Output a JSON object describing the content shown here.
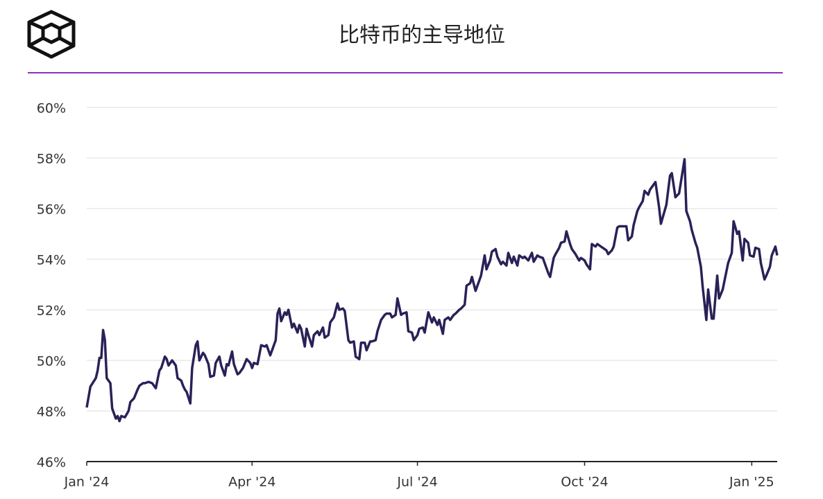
{
  "chart_data": {
    "type": "line",
    "title": "比特币的主导地位",
    "color": "#2a2157",
    "grid": true,
    "xlim": [
      0,
      380
    ],
    "xticks": [
      {
        "value": 0,
        "label": "Jan '24"
      },
      {
        "value": 91,
        "label": "Apr '24"
      },
      {
        "value": 182,
        "label": "Jul '24"
      },
      {
        "value": 274,
        "label": "Oct '24"
      },
      {
        "value": 366,
        "label": "Jan '25"
      }
    ],
    "ylim": [
      46,
      60
    ],
    "yticks": [
      {
        "value": 46,
        "label": "46%"
      },
      {
        "value": 48,
        "label": "48%"
      },
      {
        "value": 50,
        "label": "50%"
      },
      {
        "value": 52,
        "label": "52%"
      },
      {
        "value": 54,
        "label": "54%"
      },
      {
        "value": 56,
        "label": "56%"
      },
      {
        "value": 58,
        "label": "58%"
      },
      {
        "value": 60,
        "label": "60%"
      }
    ],
    "x": [
      0,
      2,
      5,
      6,
      7,
      8,
      9,
      10,
      11,
      13,
      14,
      15,
      16,
      17,
      18,
      19,
      21,
      23,
      24,
      26,
      28,
      29,
      31,
      32,
      34,
      36,
      38,
      40,
      41,
      43,
      44,
      45,
      47,
      49,
      50,
      52,
      53,
      54,
      55,
      57,
      58,
      60,
      61,
      62,
      64,
      65,
      67,
      68,
      70,
      71,
      73,
      74,
      76,
      77,
      78,
      80,
      81,
      83,
      84,
      86,
      88,
      90,
      91,
      92,
      94,
      96,
      98,
      99,
      101,
      102,
      104,
      105,
      106,
      107,
      109,
      110,
      111,
      113,
      114,
      116,
      117,
      118,
      120,
      121,
      122,
      124,
      125,
      127,
      128,
      130,
      131,
      133,
      134,
      136,
      138,
      139,
      141,
      142,
      144,
      145,
      147,
      148,
      150,
      151,
      153,
      154,
      156,
      157,
      159,
      160,
      162,
      164,
      165,
      167,
      168,
      170,
      171,
      173,
      174,
      176,
      177,
      179,
      180,
      182,
      183,
      185,
      186,
      188,
      190,
      191,
      193,
      194,
      196,
      197,
      199,
      200,
      202,
      203,
      205,
      206,
      208,
      209,
      211,
      212,
      214,
      216,
      217,
      219,
      220,
      222,
      223,
      225,
      226,
      228,
      229,
      231,
      232,
      234,
      235,
      237,
      238,
      240,
      241,
      243,
      245,
      246,
      248,
      249,
      251,
      252,
      254,
      255,
      257,
      258,
      260,
      261,
      263,
      264,
      266,
      267,
      269,
      271,
      272,
      274,
      275,
      277,
      278,
      280,
      281,
      283,
      284,
      286,
      287,
      289,
      290,
      292,
      293,
      295,
      297,
      298,
      300,
      301,
      303,
      304,
      306,
      307,
      309,
      310,
      312,
      313,
      315,
      316,
      318,
      319,
      321,
      322,
      324,
      326,
      327,
      329,
      330,
      332,
      333,
      335,
      336,
      338,
      339,
      341,
      342,
      344,
      345,
      347,
      348,
      350,
      352,
      353,
      355,
      356,
      358,
      359,
      361,
      362,
      364,
      365,
      367,
      368,
      370,
      371,
      373,
      374,
      376,
      377,
      379,
      380
    ],
    "values": [
      48.14,
      48.96,
      49.3,
      49.6,
      50.1,
      50.1,
      51.2,
      50.8,
      49.3,
      49.1,
      48.1,
      47.9,
      47.7,
      47.8,
      47.6,
      47.8,
      47.75,
      48.0,
      48.35,
      48.5,
      48.85,
      49.0,
      49.1,
      49.1,
      49.15,
      49.1,
      48.9,
      49.6,
      49.7,
      50.15,
      50.05,
      49.8,
      50.0,
      49.8,
      49.3,
      49.2,
      49.0,
      48.85,
      48.75,
      48.3,
      49.7,
      50.6,
      50.75,
      50.0,
      50.3,
      50.2,
      49.85,
      49.35,
      49.4,
      49.9,
      50.15,
      49.8,
      49.4,
      49.85,
      49.8,
      50.35,
      49.85,
      49.45,
      49.5,
      49.7,
      50.05,
      49.9,
      49.7,
      49.9,
      49.85,
      50.6,
      50.55,
      50.6,
      50.2,
      50.4,
      50.8,
      51.85,
      52.05,
      51.55,
      51.9,
      51.8,
      52.0,
      51.3,
      51.45,
      51.1,
      51.4,
      51.25,
      50.55,
      51.25,
      51.0,
      50.55,
      51.0,
      51.15,
      51.0,
      51.3,
      50.9,
      51.0,
      51.5,
      51.7,
      52.25,
      52.0,
      52.05,
      51.95,
      50.8,
      50.7,
      50.75,
      50.15,
      50.05,
      50.7,
      50.7,
      50.4,
      50.75,
      50.75,
      50.8,
      51.15,
      51.6,
      51.8,
      51.85,
      51.85,
      51.7,
      51.8,
      52.45,
      51.8,
      51.85,
      51.9,
      51.15,
      51.1,
      50.8,
      51.0,
      51.25,
      51.3,
      51.1,
      51.9,
      51.5,
      51.7,
      51.4,
      51.6,
      51.05,
      51.6,
      51.7,
      51.6,
      51.8,
      51.85,
      52.0,
      52.05,
      52.2,
      52.95,
      53.05,
      53.3,
      52.75,
      53.15,
      53.35,
      54.15,
      53.6,
      53.95,
      54.3,
      54.4,
      54.1,
      53.8,
      53.9,
      53.75,
      54.25,
      53.85,
      54.1,
      53.75,
      54.15,
      54.05,
      54.1,
      53.95,
      54.25,
      53.9,
      54.15,
      54.1,
      54.05,
      53.85,
      53.45,
      53.3,
      54.05,
      54.2,
      54.45,
      54.65,
      54.7,
      55.1,
      54.6,
      54.4,
      54.2,
      53.95,
      54.05,
      53.95,
      53.8,
      53.6,
      54.6,
      54.5,
      54.6,
      54.5,
      54.45,
      54.35,
      54.2,
      54.35,
      54.5,
      55.25,
      55.3,
      55.3,
      55.3,
      54.75,
      54.9,
      55.35,
      55.9,
      56.05,
      56.3,
      56.7,
      56.55,
      56.75,
      56.95,
      57.05,
      56.05,
      55.4,
      55.9,
      56.15,
      57.3,
      57.4,
      56.45,
      56.6,
      57.05,
      57.95,
      55.9,
      55.5,
      55.15,
      54.65,
      54.45,
      53.7,
      52.9,
      51.6,
      52.8,
      51.65,
      51.65,
      53.35,
      52.45,
      52.8,
      53.5,
      53.85,
      54.25,
      55.5,
      55.0,
      55.1,
      53.95,
      54.8,
      54.65,
      54.15,
      54.1,
      54.45,
      54.4,
      53.85,
      53.2,
      53.35,
      53.7,
      54.15,
      54.5,
      54.15
    ]
  }
}
